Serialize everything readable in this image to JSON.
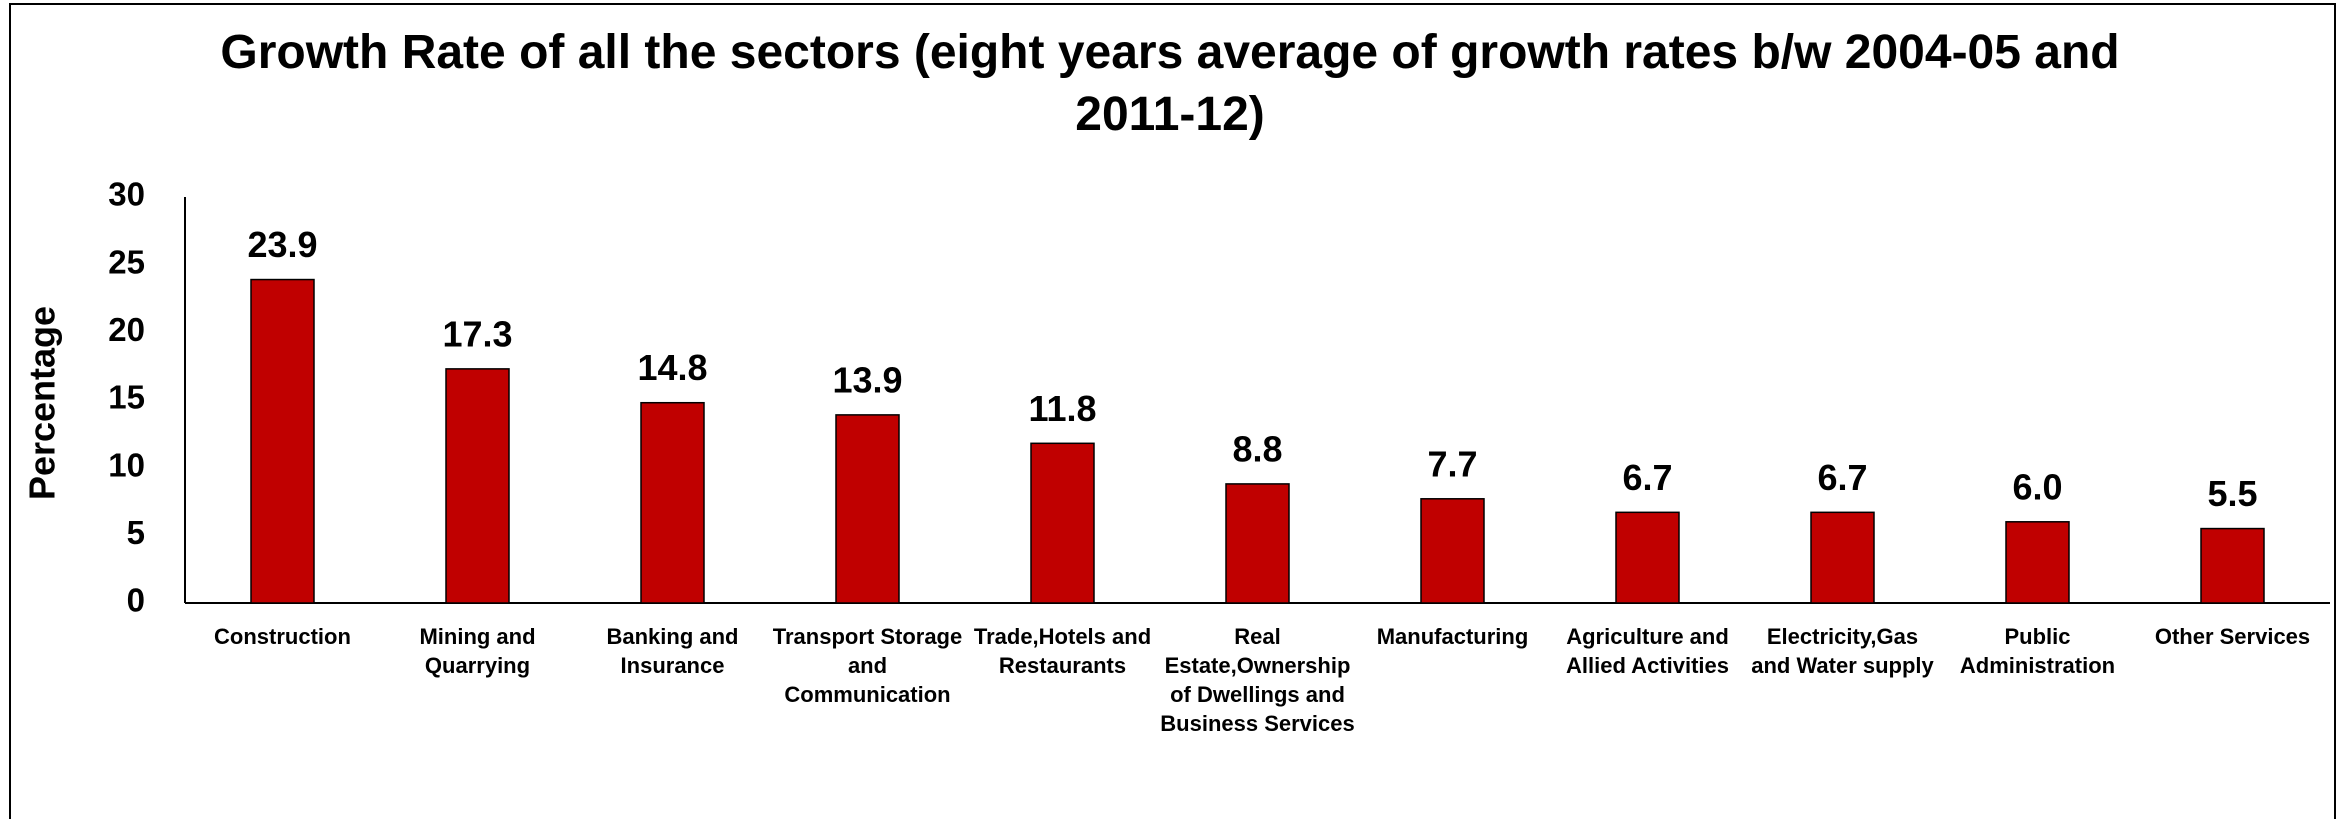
{
  "chart_data": {
    "type": "bar",
    "title": "Growth Rate of all the sectors (eight years average of growth rates b/w 2004-05 and 2011-12)",
    "y_label": "Percentage",
    "categories": [
      "Construction",
      "Mining and Quarrying",
      "Banking and Insurance",
      "Transport Storage and Communication",
      "Trade,Hotels and Restaurants",
      "Real Estate,Ownership of Dwellings and Business Services",
      "Manufacturing",
      "Agriculture and Allied Activities",
      "Electricity,Gas and Water supply",
      "Public Administration",
      "Other Services"
    ],
    "values": [
      23.9,
      17.3,
      14.8,
      13.9,
      11.8,
      8.8,
      7.7,
      6.7,
      6.7,
      6,
      5.5
    ],
    "value_labels": [
      "23.9",
      "17.3",
      "14.8",
      "13.9",
      "11.8",
      "8.8",
      "7.7",
      "6.7",
      "6.7",
      "6.0",
      "5.5"
    ],
    "color": "#c00000",
    "ylim": [
      0,
      30
    ],
    "yticks": [
      0,
      5,
      10,
      15,
      20,
      25,
      30
    ],
    "grid": false
  }
}
